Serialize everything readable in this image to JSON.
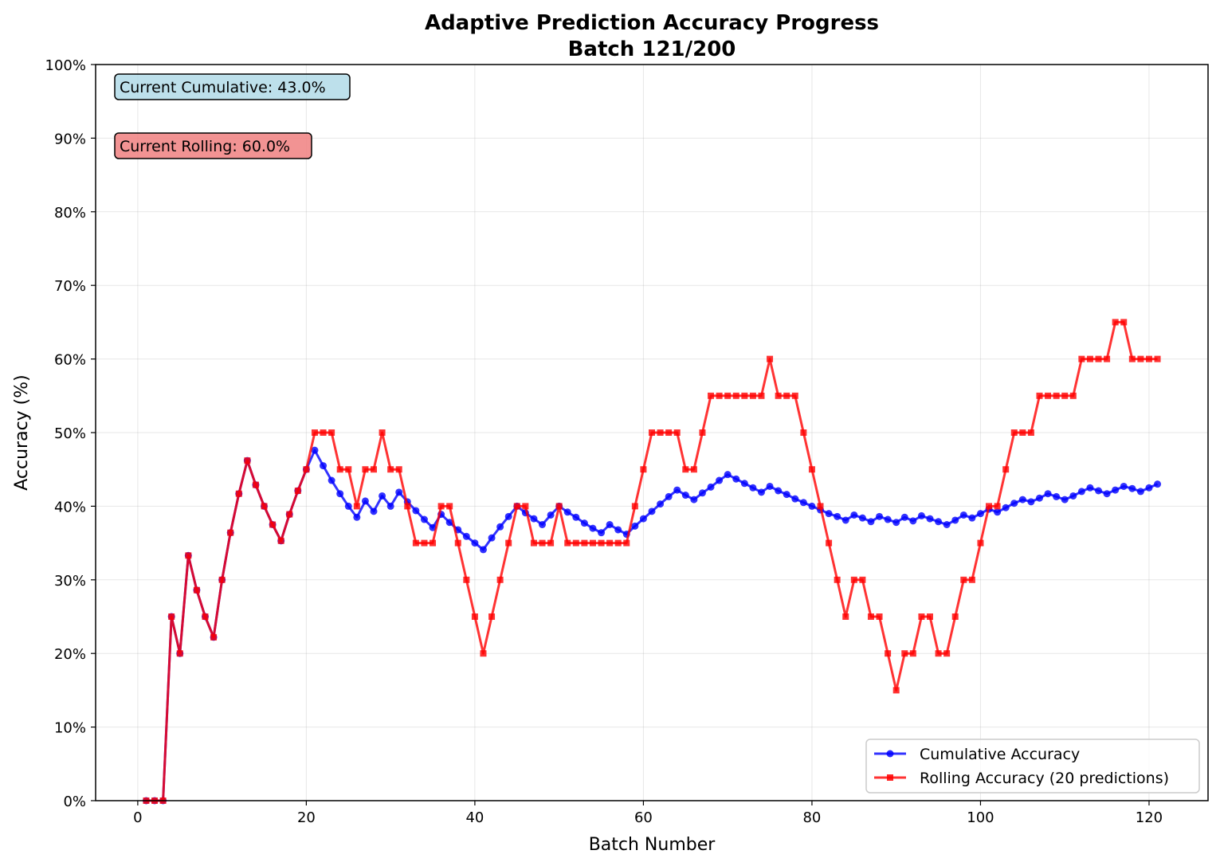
{
  "chart_data": {
    "type": "line",
    "title": "Adaptive Prediction Accuracy Progress",
    "subtitle": "Batch 121/200",
    "xlabel": "Batch Number",
    "ylabel": "Accuracy (%)",
    "xlim": [
      -5,
      127
    ],
    "ylim": [
      0,
      100
    ],
    "x_ticks": [
      0,
      20,
      40,
      60,
      80,
      100,
      120
    ],
    "y_ticks": [
      0,
      10,
      20,
      30,
      40,
      50,
      60,
      70,
      80,
      90,
      100
    ],
    "y_tick_labels": [
      "0%",
      "10%",
      "20%",
      "30%",
      "40%",
      "50%",
      "60%",
      "70%",
      "80%",
      "90%",
      "100%"
    ],
    "grid": true,
    "legend_position": "lower-right",
    "x": [
      1,
      2,
      3,
      4,
      5,
      6,
      7,
      8,
      9,
      10,
      11,
      12,
      13,
      14,
      15,
      16,
      17,
      18,
      19,
      20,
      21,
      22,
      23,
      24,
      25,
      26,
      27,
      28,
      29,
      30,
      31,
      32,
      33,
      34,
      35,
      36,
      37,
      38,
      39,
      40,
      41,
      42,
      43,
      44,
      45,
      46,
      47,
      48,
      49,
      50,
      51,
      52,
      53,
      54,
      55,
      56,
      57,
      58,
      59,
      60,
      61,
      62,
      63,
      64,
      65,
      66,
      67,
      68,
      69,
      70,
      71,
      72,
      73,
      74,
      75,
      76,
      77,
      78,
      79,
      80,
      81,
      82,
      83,
      84,
      85,
      86,
      87,
      88,
      89,
      90,
      91,
      92,
      93,
      94,
      95,
      96,
      97,
      98,
      99,
      100,
      101,
      102,
      103,
      104,
      105,
      106,
      107,
      108,
      109,
      110,
      111,
      112,
      113,
      114,
      115,
      116,
      117,
      118,
      119,
      120,
      121
    ],
    "series": [
      {
        "name": "Cumulative Accuracy",
        "color": "#0000ff",
        "marker": "circle",
        "values": [
          0,
          0,
          0,
          25,
          20,
          33.3,
          28.6,
          25,
          22.2,
          30,
          36.4,
          41.7,
          46.2,
          42.9,
          40,
          37.5,
          35.3,
          38.9,
          42.1,
          45,
          47.6,
          45.5,
          43.5,
          41.7,
          40,
          38.5,
          40.7,
          39.3,
          41.4,
          40,
          41.9,
          40.6,
          39.4,
          38.2,
          37.1,
          38.9,
          37.8,
          36.8,
          35.9,
          35,
          34.1,
          35.7,
          37.2,
          38.6,
          40,
          39.1,
          38.3,
          37.5,
          38.8,
          40,
          39.2,
          38.5,
          37.7,
          37,
          36.4,
          37.5,
          36.8,
          36.2,
          37.3,
          38.3,
          39.3,
          40.3,
          41.3,
          42.2,
          41.5,
          40.9,
          41.8,
          42.6,
          43.5,
          44.3,
          43.7,
          43.1,
          42.5,
          41.9,
          42.7,
          42.1,
          41.6,
          41,
          40.5,
          40,
          39.5,
          39,
          38.6,
          38.1,
          38.8,
          38.4,
          37.9,
          38.6,
          38.2,
          37.8,
          38.5,
          38,
          38.7,
          38.3,
          37.9,
          37.5,
          38.1,
          38.8,
          38.4,
          39,
          39.6,
          39.2,
          39.8,
          40.4,
          40.9,
          40.6,
          41.1,
          41.7,
          41.3,
          40.9,
          41.4,
          42,
          42.5,
          42.1,
          41.7,
          42.2,
          42.7,
          42.4,
          42,
          42.5,
          43
        ]
      },
      {
        "name": "Rolling Accuracy (20 predictions)",
        "color": "#ff0000",
        "marker": "square",
        "values": [
          0,
          0,
          0,
          25,
          20,
          33.3,
          28.6,
          25,
          22.2,
          30,
          36.4,
          41.7,
          46.2,
          42.9,
          40,
          37.5,
          35.3,
          38.9,
          42.1,
          45,
          50,
          50,
          50,
          45,
          45,
          40,
          45,
          45,
          50,
          45,
          45,
          40,
          35,
          35,
          35,
          40,
          40,
          35,
          30,
          25,
          20,
          25,
          30,
          35,
          40,
          40,
          35,
          35,
          35,
          40,
          35,
          35,
          35,
          35,
          35,
          35,
          35,
          35,
          40,
          45,
          50,
          50,
          50,
          50,
          45,
          45,
          50,
          55,
          55,
          55,
          55,
          55,
          55,
          55,
          60,
          55,
          55,
          55,
          50,
          45,
          40,
          35,
          30,
          25,
          30,
          30,
          25,
          25,
          20,
          15,
          20,
          20,
          25,
          25,
          20,
          20,
          25,
          30,
          30,
          35,
          40,
          40,
          45,
          50,
          50,
          50,
          55,
          55,
          55,
          55,
          55,
          60,
          60,
          60,
          60,
          65,
          65,
          60,
          60,
          60,
          60
        ]
      }
    ],
    "annotations": [
      {
        "text": "Current Cumulative: 43.0%",
        "bg": "#add8e6"
      },
      {
        "text": "Current Rolling: 60.0%",
        "bg": "#f08080"
      }
    ]
  }
}
